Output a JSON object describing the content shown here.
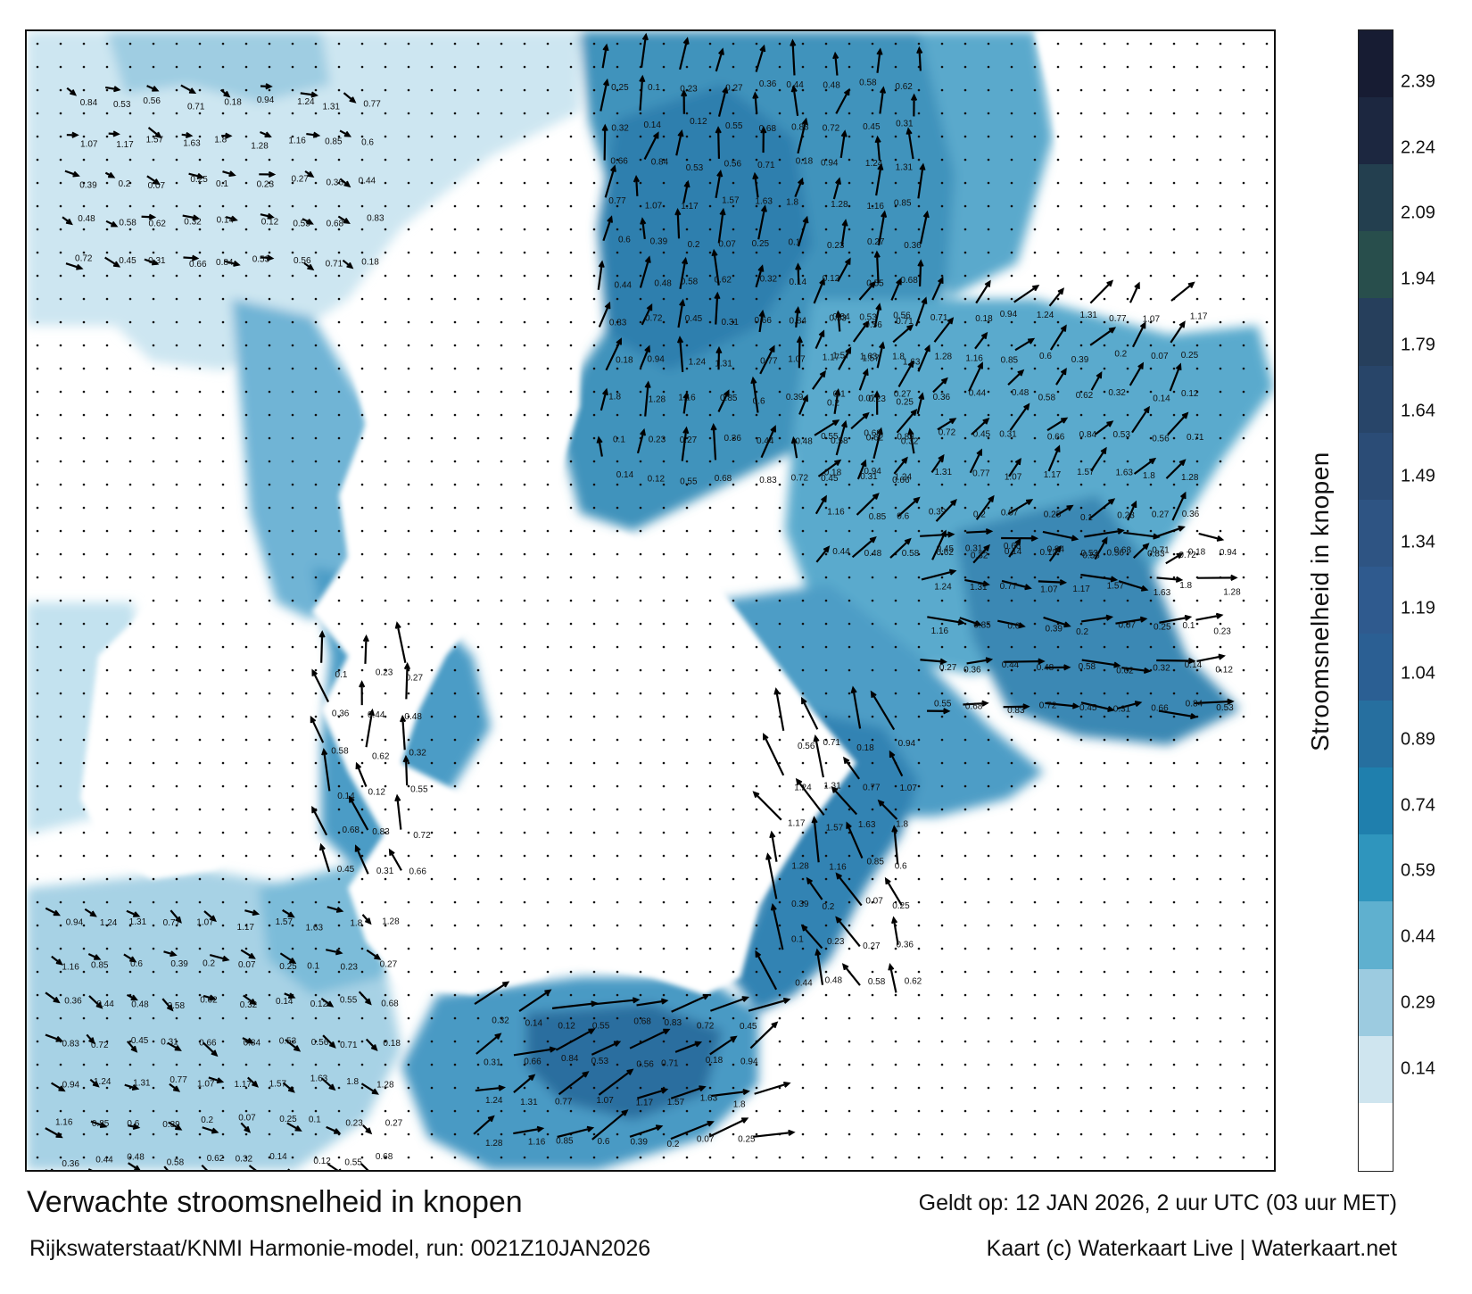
{
  "title": "Verwachte stroomsnelheid in knopen",
  "subtitle": "Rijkswaterstaat/KNMI Harmonie-model, run: 0021Z10JAN2026",
  "valid_time": "Geldt op: 12 JAN 2026, 2 uur UTC (03 uur MET)",
  "credit": "Kaart (c) Waterkaart Live | Waterkaart.net",
  "colorbar": {
    "label": "Stroomsnelheid in knopen",
    "ticks": [
      "2.39",
      "2.24",
      "2.09",
      "1.94",
      "1.79",
      "1.64",
      "1.49",
      "1.34",
      "1.19",
      "1.04",
      "0.89",
      "0.74",
      "0.59",
      "0.44",
      "0.29",
      "0.14"
    ],
    "range": [
      0,
      2.54
    ],
    "colors": [
      "#ffffff",
      "#cfe5ef",
      "#9ccbe0",
      "#5fb0cf",
      "#2f95bd",
      "#1f7fad",
      "#266f9f",
      "#2b5f93",
      "#2f5a8e",
      "#2e5483",
      "#2b4c76",
      "#284569",
      "#263f5c",
      "#284e4c",
      "#233f4f",
      "#1c2740",
      "#171c33"
    ]
  },
  "map": {
    "water_color": "#3d8fb8",
    "shallow_color": "#bfe0ee",
    "land_color": "#ffffff",
    "sample_labels": [
      {
        "text": "0.25"
      },
      {
        "text": "0.1"
      },
      {
        "text": "0.23"
      },
      {
        "text": "0.27"
      },
      {
        "text": "0.36"
      },
      {
        "text": "0.44"
      },
      {
        "text": "0.48"
      },
      {
        "text": "0.58"
      },
      {
        "text": "0.62"
      },
      {
        "text": "0.32"
      },
      {
        "text": "0.14"
      },
      {
        "text": "0.12"
      },
      {
        "text": "0.55"
      },
      {
        "text": "0.68"
      },
      {
        "text": "0.83"
      },
      {
        "text": "0.72"
      },
      {
        "text": "0.45"
      },
      {
        "text": "0.31"
      },
      {
        "text": "0.66"
      },
      {
        "text": "0.84"
      },
      {
        "text": "0.53"
      },
      {
        "text": "0.56"
      },
      {
        "text": "0.71"
      },
      {
        "text": "0.18"
      },
      {
        "text": "0.94"
      },
      {
        "text": "1.24"
      },
      {
        "text": "1.31"
      },
      {
        "text": "0.77"
      },
      {
        "text": "1.07"
      },
      {
        "text": "1.17"
      },
      {
        "text": "1.57"
      },
      {
        "text": "1.63"
      },
      {
        "text": "1.8"
      },
      {
        "text": "1.28"
      },
      {
        "text": "1.16"
      },
      {
        "text": "0.85"
      },
      {
        "text": "0.6"
      },
      {
        "text": "0.39"
      },
      {
        "text": "0.2"
      },
      {
        "text": "0.07"
      }
    ]
  }
}
